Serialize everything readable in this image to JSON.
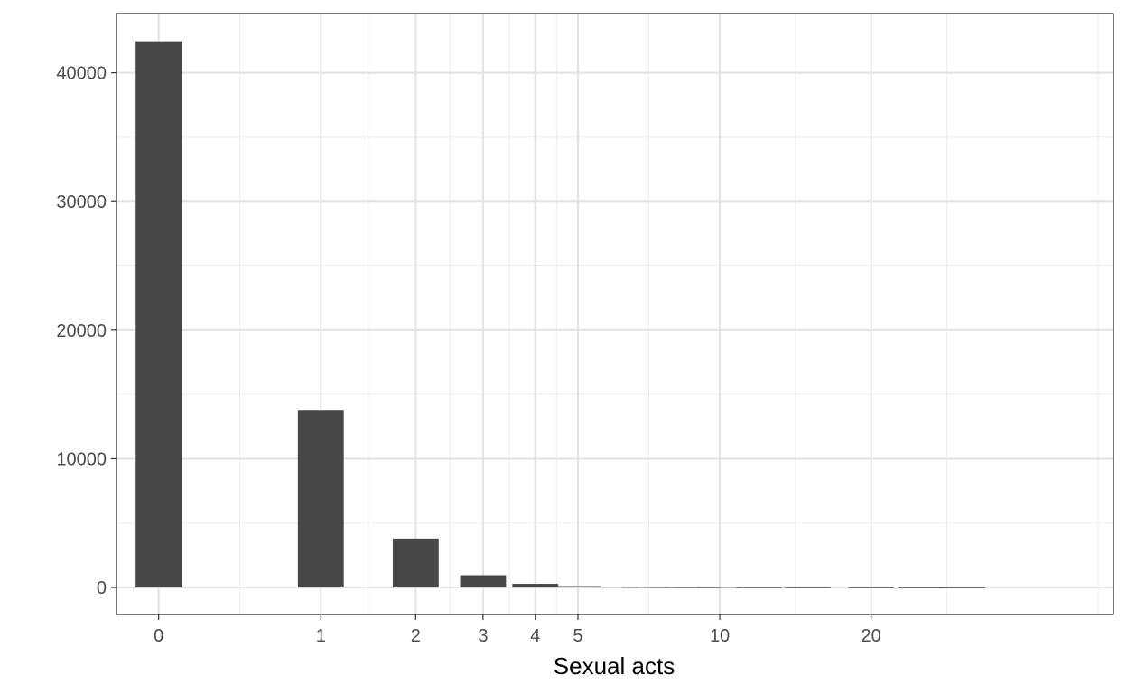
{
  "chart_data": {
    "type": "bar",
    "title": "",
    "xlabel": "Sexual acts",
    "ylabel": "",
    "x_scale": "log1p",
    "grid": true,
    "legend": "none",
    "bar_color": "#474747",
    "x_ticks": [
      {
        "value": 0,
        "label": "0"
      },
      {
        "value": 1,
        "label": "1"
      },
      {
        "value": 2,
        "label": "2"
      },
      {
        "value": 3,
        "label": "3"
      },
      {
        "value": 4,
        "label": "4"
      },
      {
        "value": 5,
        "label": "5"
      },
      {
        "value": 10,
        "label": "10"
      },
      {
        "value": 20,
        "label": "20"
      }
    ],
    "y_ticks": [
      {
        "value": 0,
        "label": "0"
      },
      {
        "value": 10000,
        "label": "10000"
      },
      {
        "value": 20000,
        "label": "20000"
      },
      {
        "value": 30000,
        "label": "30000"
      },
      {
        "value": 40000,
        "label": "40000"
      }
    ],
    "ylim": [
      -2100,
      44600
    ],
    "xlim": [
      -0.18,
      4.08
    ],
    "bars": [
      {
        "x": 0,
        "count": 42450
      },
      {
        "x": 1,
        "count": 13800
      },
      {
        "x": 2,
        "count": 3800
      },
      {
        "x": 3,
        "count": 950
      },
      {
        "x": 4,
        "count": 280
      },
      {
        "x": 5,
        "count": 110
      },
      {
        "x": 6,
        "count": 55
      },
      {
        "x": 7,
        "count": 35
      },
      {
        "x": 8,
        "count": 25
      },
      {
        "x": 9,
        "count": 18
      },
      {
        "x": 10,
        "count": 40
      },
      {
        "x": 12,
        "count": 12
      },
      {
        "x": 15,
        "count": 10
      },
      {
        "x": 20,
        "count": 8
      },
      {
        "x": 25,
        "count": 4
      },
      {
        "x": 30,
        "count": 3
      }
    ]
  }
}
